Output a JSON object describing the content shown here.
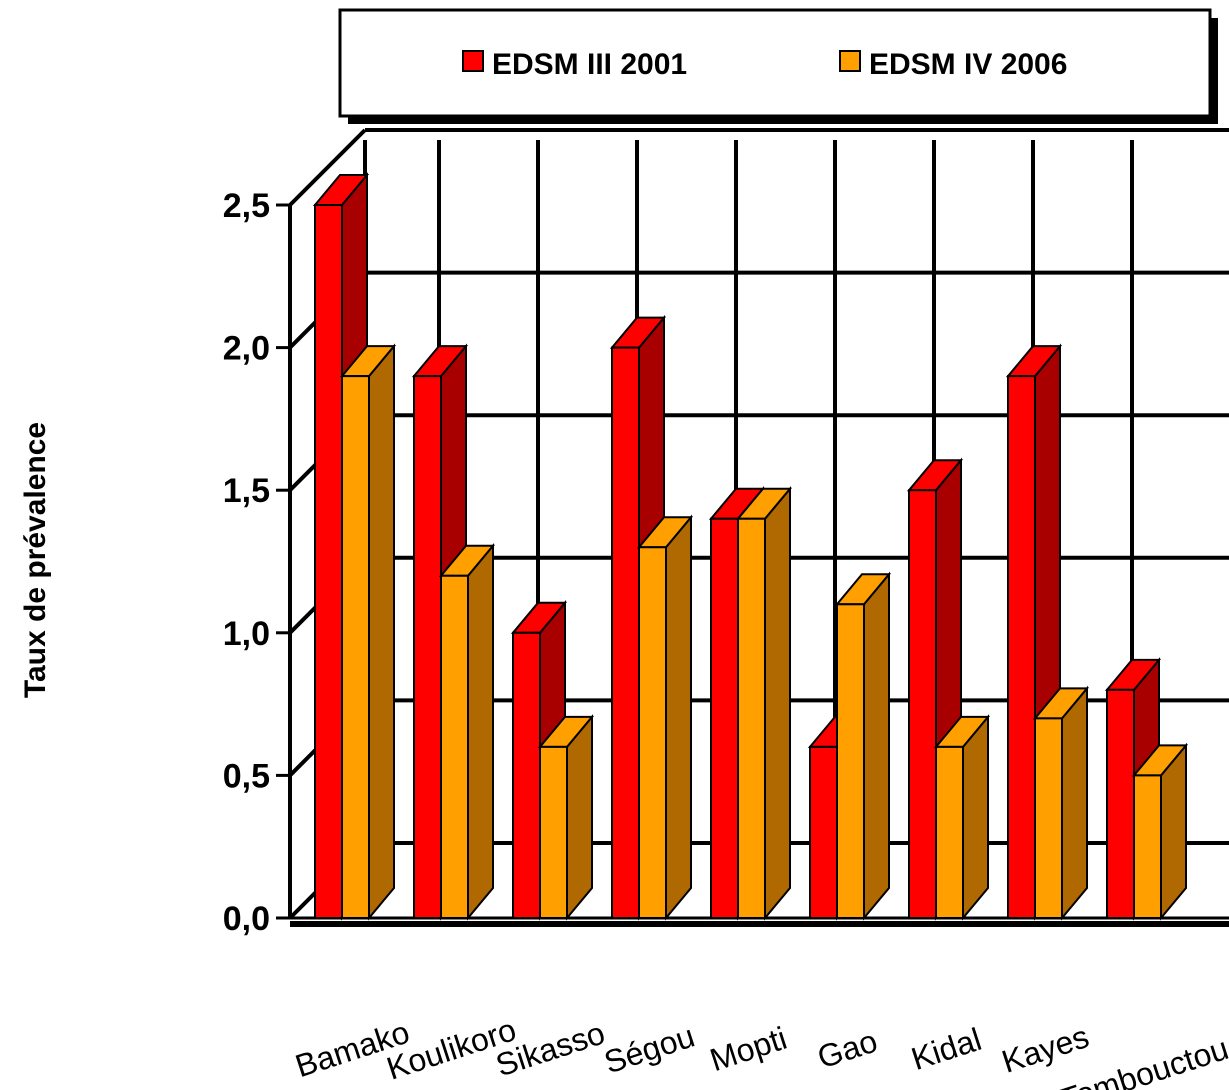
{
  "chart_data": {
    "type": "bar",
    "style": "3d-clustered-columns",
    "categories": [
      "Bamako",
      "Koulikoro",
      "Sikasso",
      "Ségou",
      "Mopti",
      "Gao",
      "Kidal",
      "Kayes",
      "Tombouctou"
    ],
    "series": [
      {
        "name": "EDSM III 2001",
        "values": [
          2.5,
          1.9,
          1.0,
          2.0,
          1.4,
          0.6,
          1.5,
          1.9,
          0.8
        ],
        "color_front": "#ff0000",
        "color_side": "#a80000"
      },
      {
        "name": "EDSM IV 2006",
        "values": [
          1.9,
          1.2,
          0.6,
          1.3,
          1.4,
          1.1,
          0.6,
          0.7,
          0.5
        ],
        "color_front": "#ffa000",
        "color_side": "#b06800"
      }
    ],
    "ylabel": "Taux de prévalence",
    "xlabel": "",
    "ylim": [
      0,
      2.5
    ],
    "yticks": [
      "0,0",
      "0,5",
      "1,0",
      "1,5",
      "2,0",
      "2,5"
    ],
    "grid": true,
    "legend": "top-center"
  }
}
